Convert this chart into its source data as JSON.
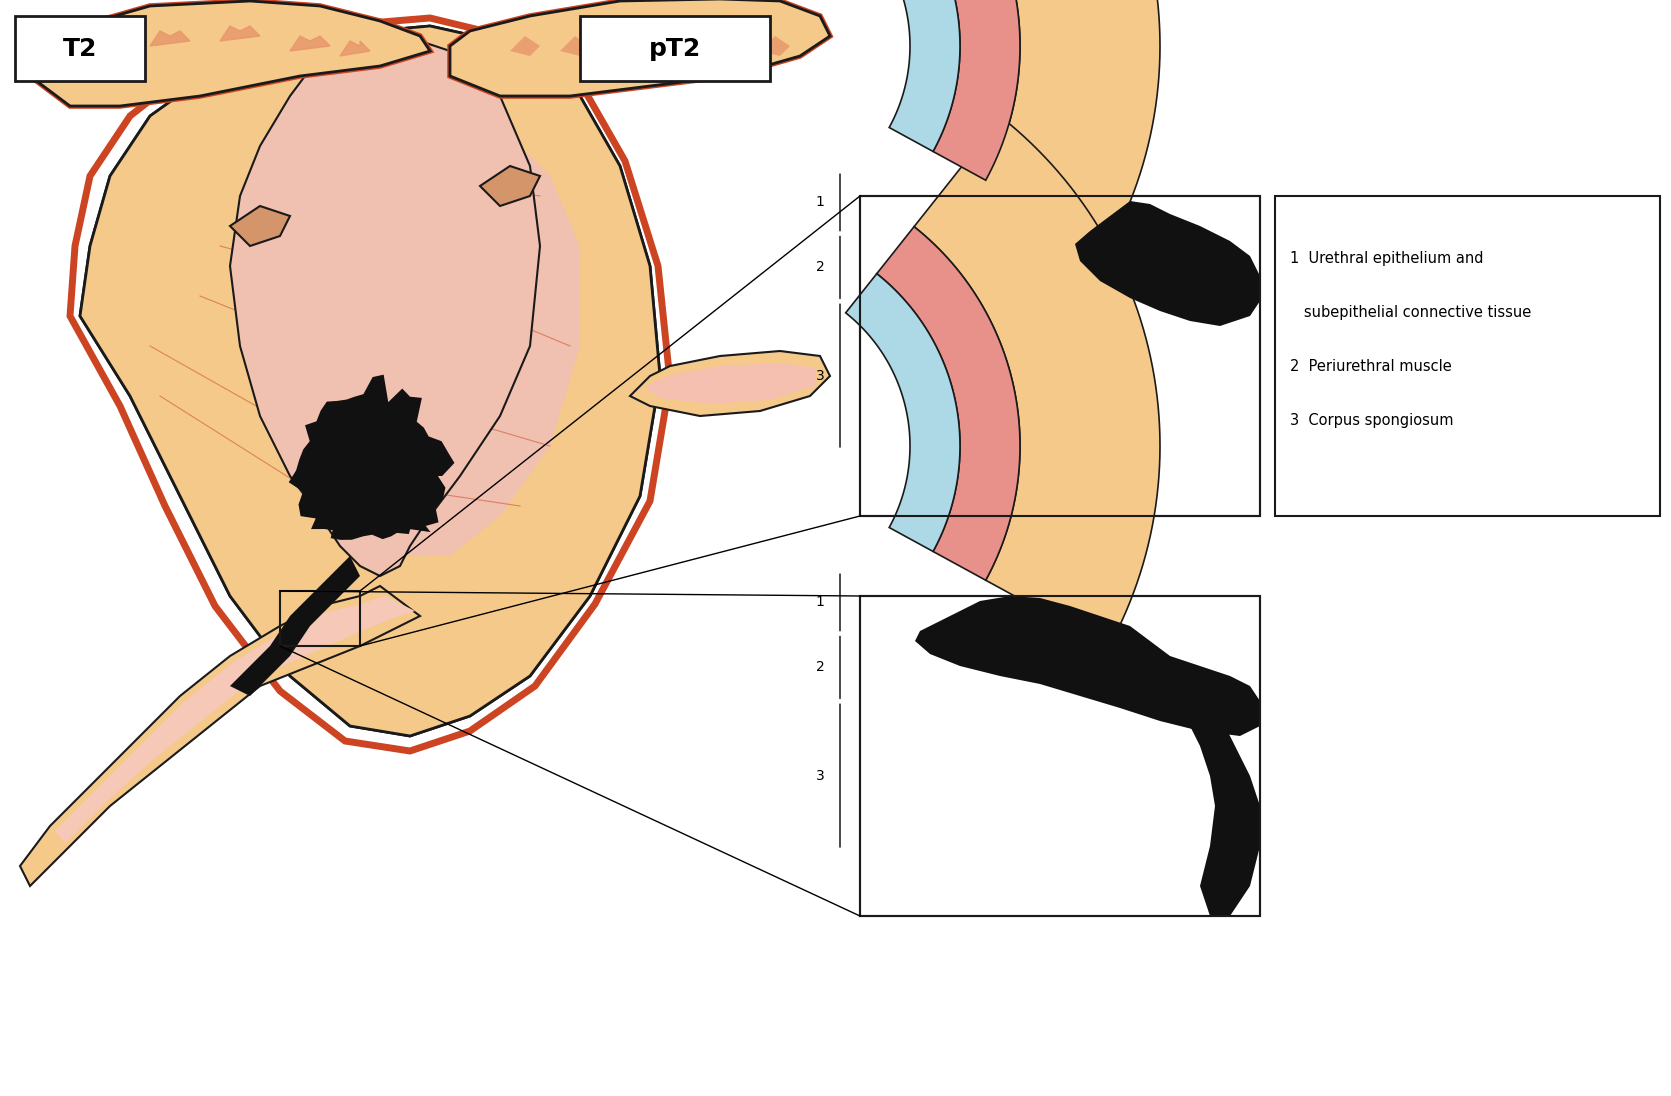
{
  "title_left": "T2",
  "title_right": "pT2",
  "bg_color": "#ffffff",
  "body_fill": "#F5C98A",
  "body_fill_light": "#F8D9A0",
  "body_outline": "#CC5533",
  "bladder_inner": "#F2B5A0",
  "bladder_inner_light": "#F9D5C8",
  "red_stripe": "#CC4422",
  "pink_fill": "#F5B8A8",
  "dark_outline": "#1a1a1a",
  "tumor_color": "#111111",
  "layer1_color": "#ADD8E6",
  "layer2_color": "#E8908A",
  "layer3_color": "#F5C98A",
  "legend_text": [
    "1  Urethral epithelium and",
    "   subepithelial connective tissue",
    "2  Periurethral muscle",
    "3  Corpus spongiosum"
  ],
  "label_1": "1",
  "label_2": "2",
  "label_3": "3"
}
